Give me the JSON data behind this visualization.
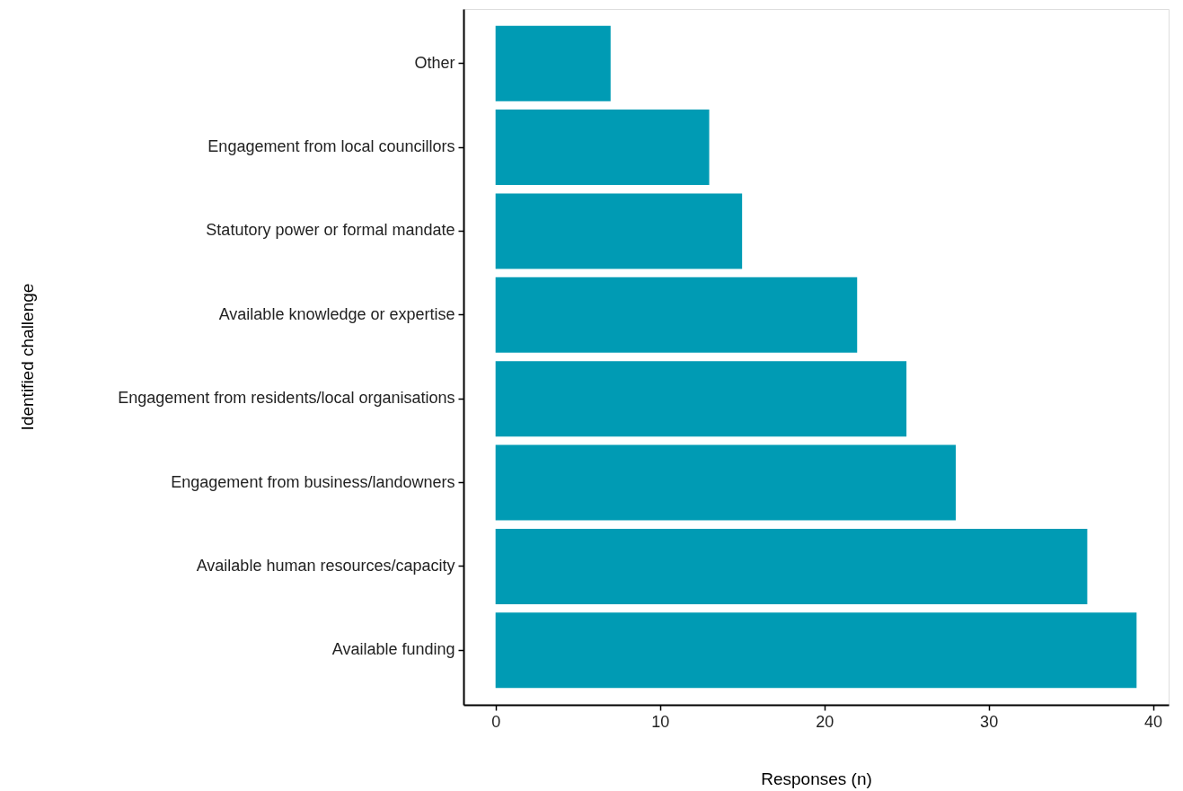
{
  "chart_data": {
    "type": "bar",
    "orientation": "horizontal",
    "xlabel": "Responses (n)",
    "ylabel": "Identified challenge",
    "categories": [
      "Other",
      "Engagement from local councillors",
      "Statutory power or formal mandate",
      "Available knowledge or expertise",
      "Engagement from residents/local organisations",
      "Engagement from business/landowners",
      "Available human resources/capacity",
      "Available funding"
    ],
    "values": [
      7,
      13,
      15,
      22,
      25,
      28,
      36,
      39
    ],
    "color": "#009bb4",
    "xlim": [
      -1.95,
      40.95
    ],
    "xticks": [
      0,
      10,
      20,
      30,
      40
    ]
  }
}
